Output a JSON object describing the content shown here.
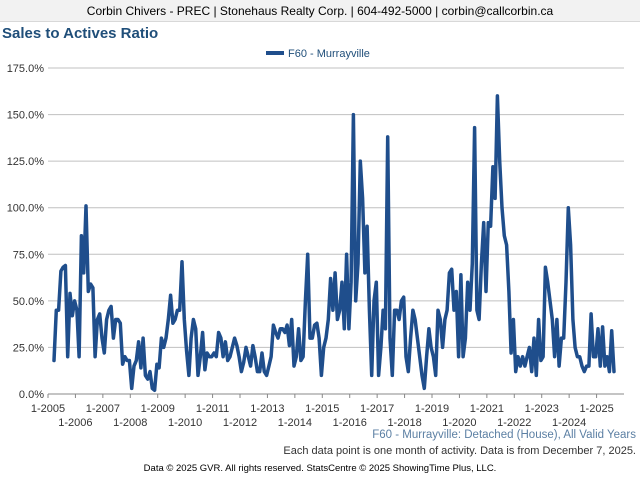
{
  "header": {
    "contact": "Corbin Chivers - PREC | Stonehaus Realty Corp. | 604-492-5000 | corbin@callcorbin.ca"
  },
  "subtitle": "F60 - Murrayville: Detached (House), All Valid Years",
  "note": "Each data point is one month of activity. Data is from December 7, 2025.",
  "footer": "Data © 2025 GVR. All rights reserved. StatsCentre © 2025 ShowingTime Plus, LLC.",
  "colors": {
    "series": "#1f4e8c",
    "grid": "#c0c0c0",
    "title": "#1f4e79"
  },
  "chart_data": {
    "type": "line",
    "title": "Sales to Actives Ratio",
    "legend": "F60 - Murrayville",
    "ylim": [
      0,
      175
    ],
    "yticks": [
      "0.0%",
      "25.0%",
      "50.0%",
      "75.0%",
      "100.0%",
      "125.0%",
      "150.0%",
      "175.0%"
    ],
    "xticks_upper": [
      "1-2005",
      "1-2007",
      "1-2009",
      "1-2011",
      "1-2013",
      "1-2015",
      "1-2017",
      "1-2019",
      "1-2021",
      "1-2023",
      "1-2025"
    ],
    "xticks_lower": [
      "1-2006",
      "1-2008",
      "1-2010",
      "1-2012",
      "1-2014",
      "1-2016",
      "1-2018",
      "1-2020",
      "1-2022",
      "1-2024"
    ],
    "start_year": 2005,
    "series": [
      {
        "name": "F60 - Murrayville",
        "values": [
          18,
          45,
          45,
          66,
          68,
          69,
          20,
          54,
          42,
          50,
          45,
          20,
          85,
          65,
          101,
          55,
          59,
          57,
          20,
          40,
          43,
          30,
          22,
          40,
          45,
          47,
          30,
          40,
          40,
          38,
          16,
          20,
          18,
          18,
          3,
          15,
          18,
          28,
          14,
          30,
          10,
          8,
          12,
          3,
          2,
          16,
          14,
          30,
          25,
          30,
          40,
          53,
          38,
          40,
          45,
          45,
          71,
          40,
          23,
          10,
          30,
          40,
          35,
          10,
          20,
          33,
          13,
          22,
          20,
          20,
          22,
          20,
          33,
          30,
          20,
          28,
          18,
          20,
          25,
          30,
          26,
          20,
          12,
          17,
          25,
          20,
          15,
          26,
          20,
          12,
          12,
          22,
          12,
          10,
          15,
          20,
          37,
          33,
          30,
          35,
          35,
          33,
          37,
          26,
          40,
          15,
          20,
          35,
          18,
          20,
          50,
          75,
          30,
          30,
          37,
          38,
          30,
          10,
          25,
          30,
          40,
          62,
          45,
          65,
          40,
          45,
          60,
          35,
          75,
          35,
          60,
          150,
          50,
          70,
          125,
          105,
          65,
          90,
          45,
          10,
          50,
          60,
          10,
          25,
          45,
          35,
          138,
          30,
          10,
          45,
          45,
          40,
          50,
          52,
          20,
          12,
          30,
          45,
          40,
          30,
          20,
          10,
          3,
          20,
          35,
          25,
          20,
          10,
          45,
          40,
          25,
          40,
          45,
          65,
          67,
          45,
          55,
          20,
          64,
          20,
          30,
          60,
          45,
          70,
          143,
          45,
          40,
          70,
          92,
          55,
          92,
          90,
          122,
          105,
          160,
          125,
          100,
          85,
          80,
          55,
          22,
          40,
          12,
          20,
          15,
          20,
          15,
          20,
          25,
          12,
          30,
          10,
          40,
          18,
          20,
          68,
          60,
          50,
          40,
          20,
          40,
          15,
          30,
          30,
          60,
          100,
          80,
          40,
          25,
          20,
          20,
          15,
          12,
          15,
          15,
          43,
          20,
          20,
          35,
          15,
          36,
          15,
          20,
          12,
          34,
          12
        ]
      }
    ]
  }
}
